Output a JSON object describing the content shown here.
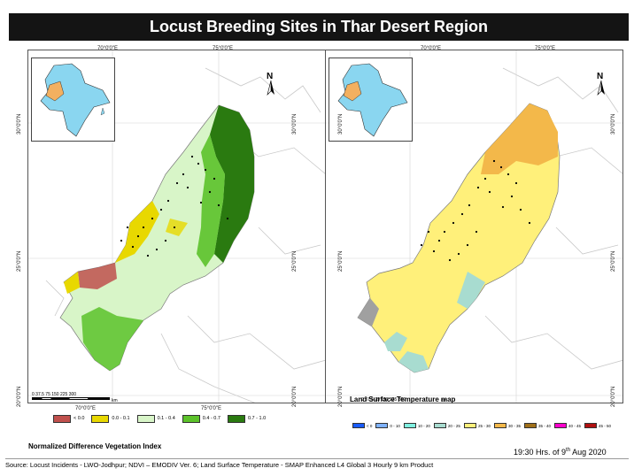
{
  "title": "Locust Breeding Sites in Thar Desert Region",
  "axis_ticks": {
    "lon_top_left": "70°0'0\"E",
    "lon_top_left_2": "75°0'0\"E",
    "lon_bottom_left": "70°0'0\"E",
    "lon_bottom_left_2": "75°0'0\"E",
    "lat_30": "30°0'0\"N",
    "lat_25": "25°0'0\"N",
    "lat_20": "20°0'0\"N"
  },
  "north_label": "N",
  "scale": {
    "numbers": "0  37.5 75      150      225      300",
    "unit": "km"
  },
  "left_map": {
    "caption": "Normalized Difference Vegetation Index",
    "legend": [
      {
        "label": "< 0.0",
        "color": "#c0504d"
      },
      {
        "label": "0.0 - 0.1",
        "color": "#e8d800"
      },
      {
        "label": "0.1 - 0.4",
        "color": "#d8f5c8"
      },
      {
        "label": "0.4 - 0.7",
        "color": "#5cc22a"
      },
      {
        "label": "0.7 - 1.0",
        "color": "#2a7a10"
      }
    ]
  },
  "right_map": {
    "caption": "Land Surface Temperature map",
    "legend": [
      {
        "label": "< 0",
        "color": "#1a5cff"
      },
      {
        "label": "0 - 10",
        "color": "#7fb2ff"
      },
      {
        "label": "10 - 20",
        "color": "#7ff0e0"
      },
      {
        "label": "20 - 25",
        "color": "#a8dcd0"
      },
      {
        "label": "25 - 30",
        "color": "#fff07a"
      },
      {
        "label": "30 - 35",
        "color": "#f3b84a"
      },
      {
        "label": "35 - 40",
        "color": "#a0701a"
      },
      {
        "label": "40 - 45",
        "color": "#ff00cc"
      },
      {
        "label": "45 - 50",
        "color": "#b01010"
      }
    ]
  },
  "timestamp": {
    "prefix": "19:30 Hrs. of 9",
    "sup": "th",
    "suffix": " Aug 2020"
  },
  "source": "Source: Locust Incidents - LWO-Jodhpur; NDVI – EMODIV Ver. 6; Land Surface Temperature - SMAP Enhanced L4 Global 3 Hourly 9 km Product"
}
